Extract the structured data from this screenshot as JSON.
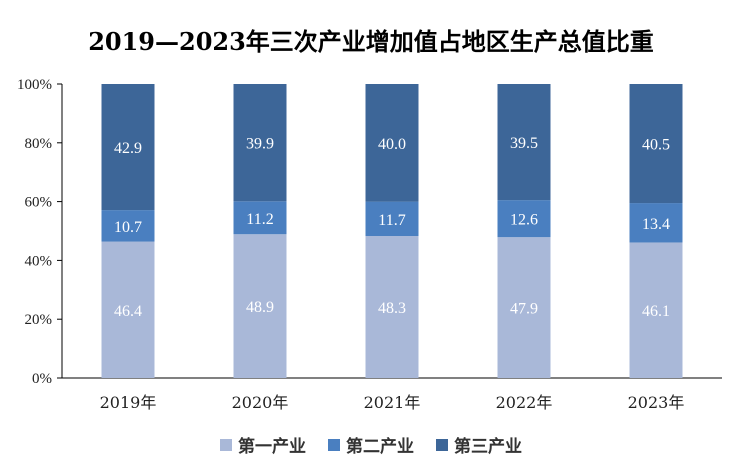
{
  "chart_data": {
    "type": "bar",
    "stacked": true,
    "title": "2019—2023年三次产业增加值占地区生产总值比重",
    "categories": [
      "2019年",
      "2020年",
      "2021年",
      "2022年",
      "2023年"
    ],
    "series": [
      {
        "name": "第一产业",
        "color": "#a9b8d8",
        "values": [
          46.4,
          48.9,
          48.3,
          47.9,
          46.1
        ]
      },
      {
        "name": "第二产业",
        "color": "#4a7fc0",
        "values": [
          10.7,
          11.2,
          11.7,
          12.6,
          13.4
        ]
      },
      {
        "name": "第三产业",
        "color": "#3d6698",
        "values": [
          42.9,
          39.9,
          40.0,
          39.5,
          40.5
        ]
      }
    ],
    "value_labels": [
      [
        "46.4",
        "48.9",
        "48.3",
        "47.9",
        "46.1"
      ],
      [
        "10.7",
        "11.2",
        "11.7",
        "12.6",
        "13.4"
      ],
      [
        "42.9",
        "39.9",
        "40.0",
        "39.5",
        "40.5"
      ]
    ],
    "ylim": [
      0,
      100
    ],
    "yticks": [
      "0%",
      "20%",
      "40%",
      "60%",
      "80%",
      "100%"
    ],
    "legend": "bottom",
    "grid": false
  }
}
